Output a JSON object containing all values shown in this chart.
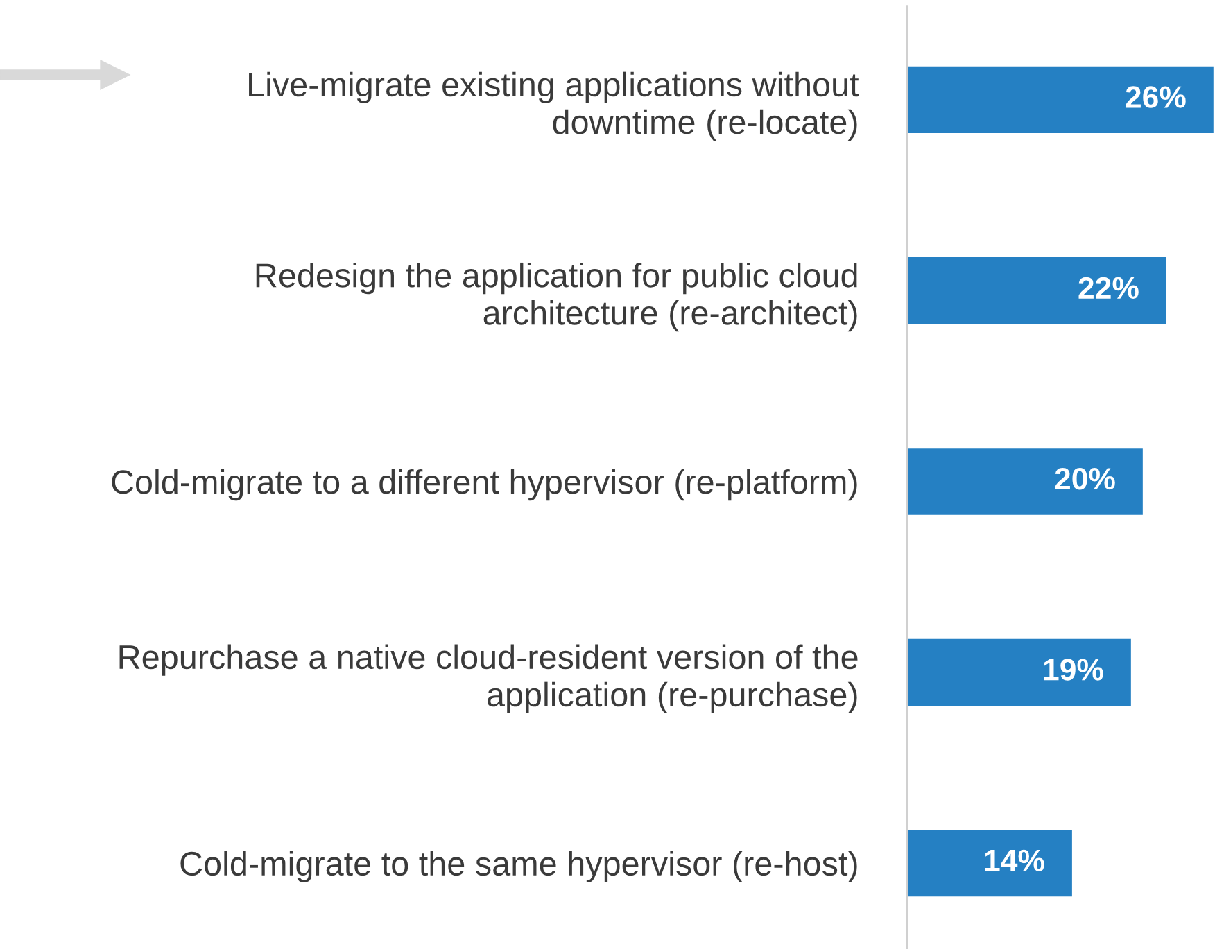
{
  "chart_data": {
    "type": "bar",
    "orientation": "horizontal",
    "categories": [
      "Live-migrate existing applications without\ndowntime (re-locate)",
      "Redesign the application for public cloud\narchitecture (re-architect)",
      "Cold-migrate to a different hypervisor (re-platform)",
      "Repurchase a native cloud-resident version of the\napplication (re-purchase)",
      "Cold-migrate to the same hypervisor (re-host)"
    ],
    "values": [
      26,
      22,
      20,
      19,
      14
    ],
    "value_labels": [
      "26%",
      "22%",
      "20%",
      "19%",
      "14%"
    ],
    "color": "#2580c3"
  }
}
